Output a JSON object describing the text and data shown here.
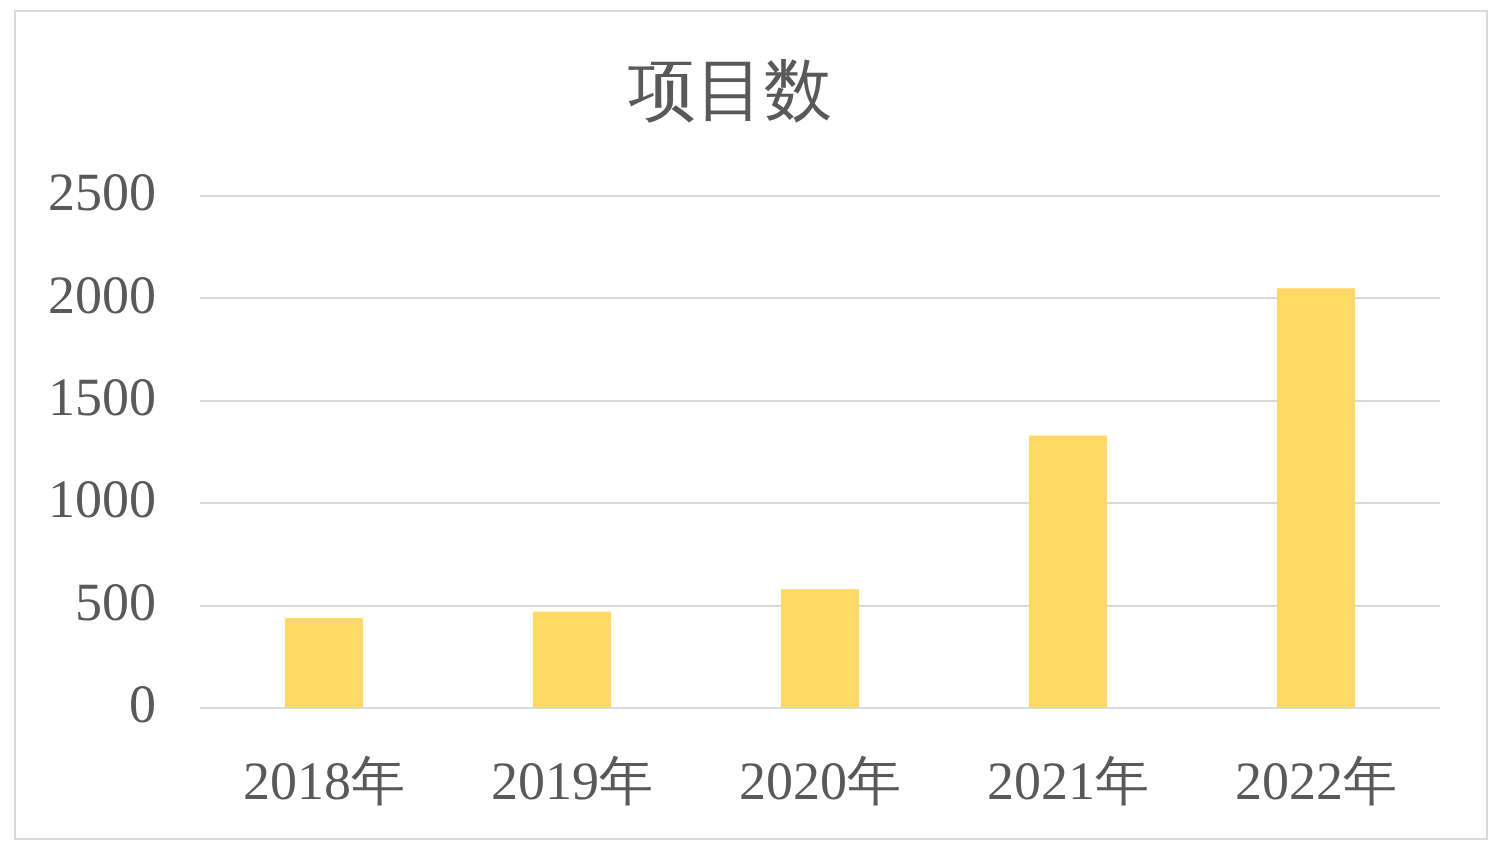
{
  "chart_data": {
    "type": "bar",
    "title": "项目数",
    "categories": [
      "2018年",
      "2019年",
      "2020年",
      "2021年",
      "2022年"
    ],
    "values": [
      440,
      470,
      580,
      1330,
      2050
    ],
    "color": "#ffd966",
    "ylim": [
      0,
      2500
    ],
    "yticks": [
      0,
      500,
      1000,
      1500,
      2000,
      2500
    ],
    "grid": "y"
  }
}
